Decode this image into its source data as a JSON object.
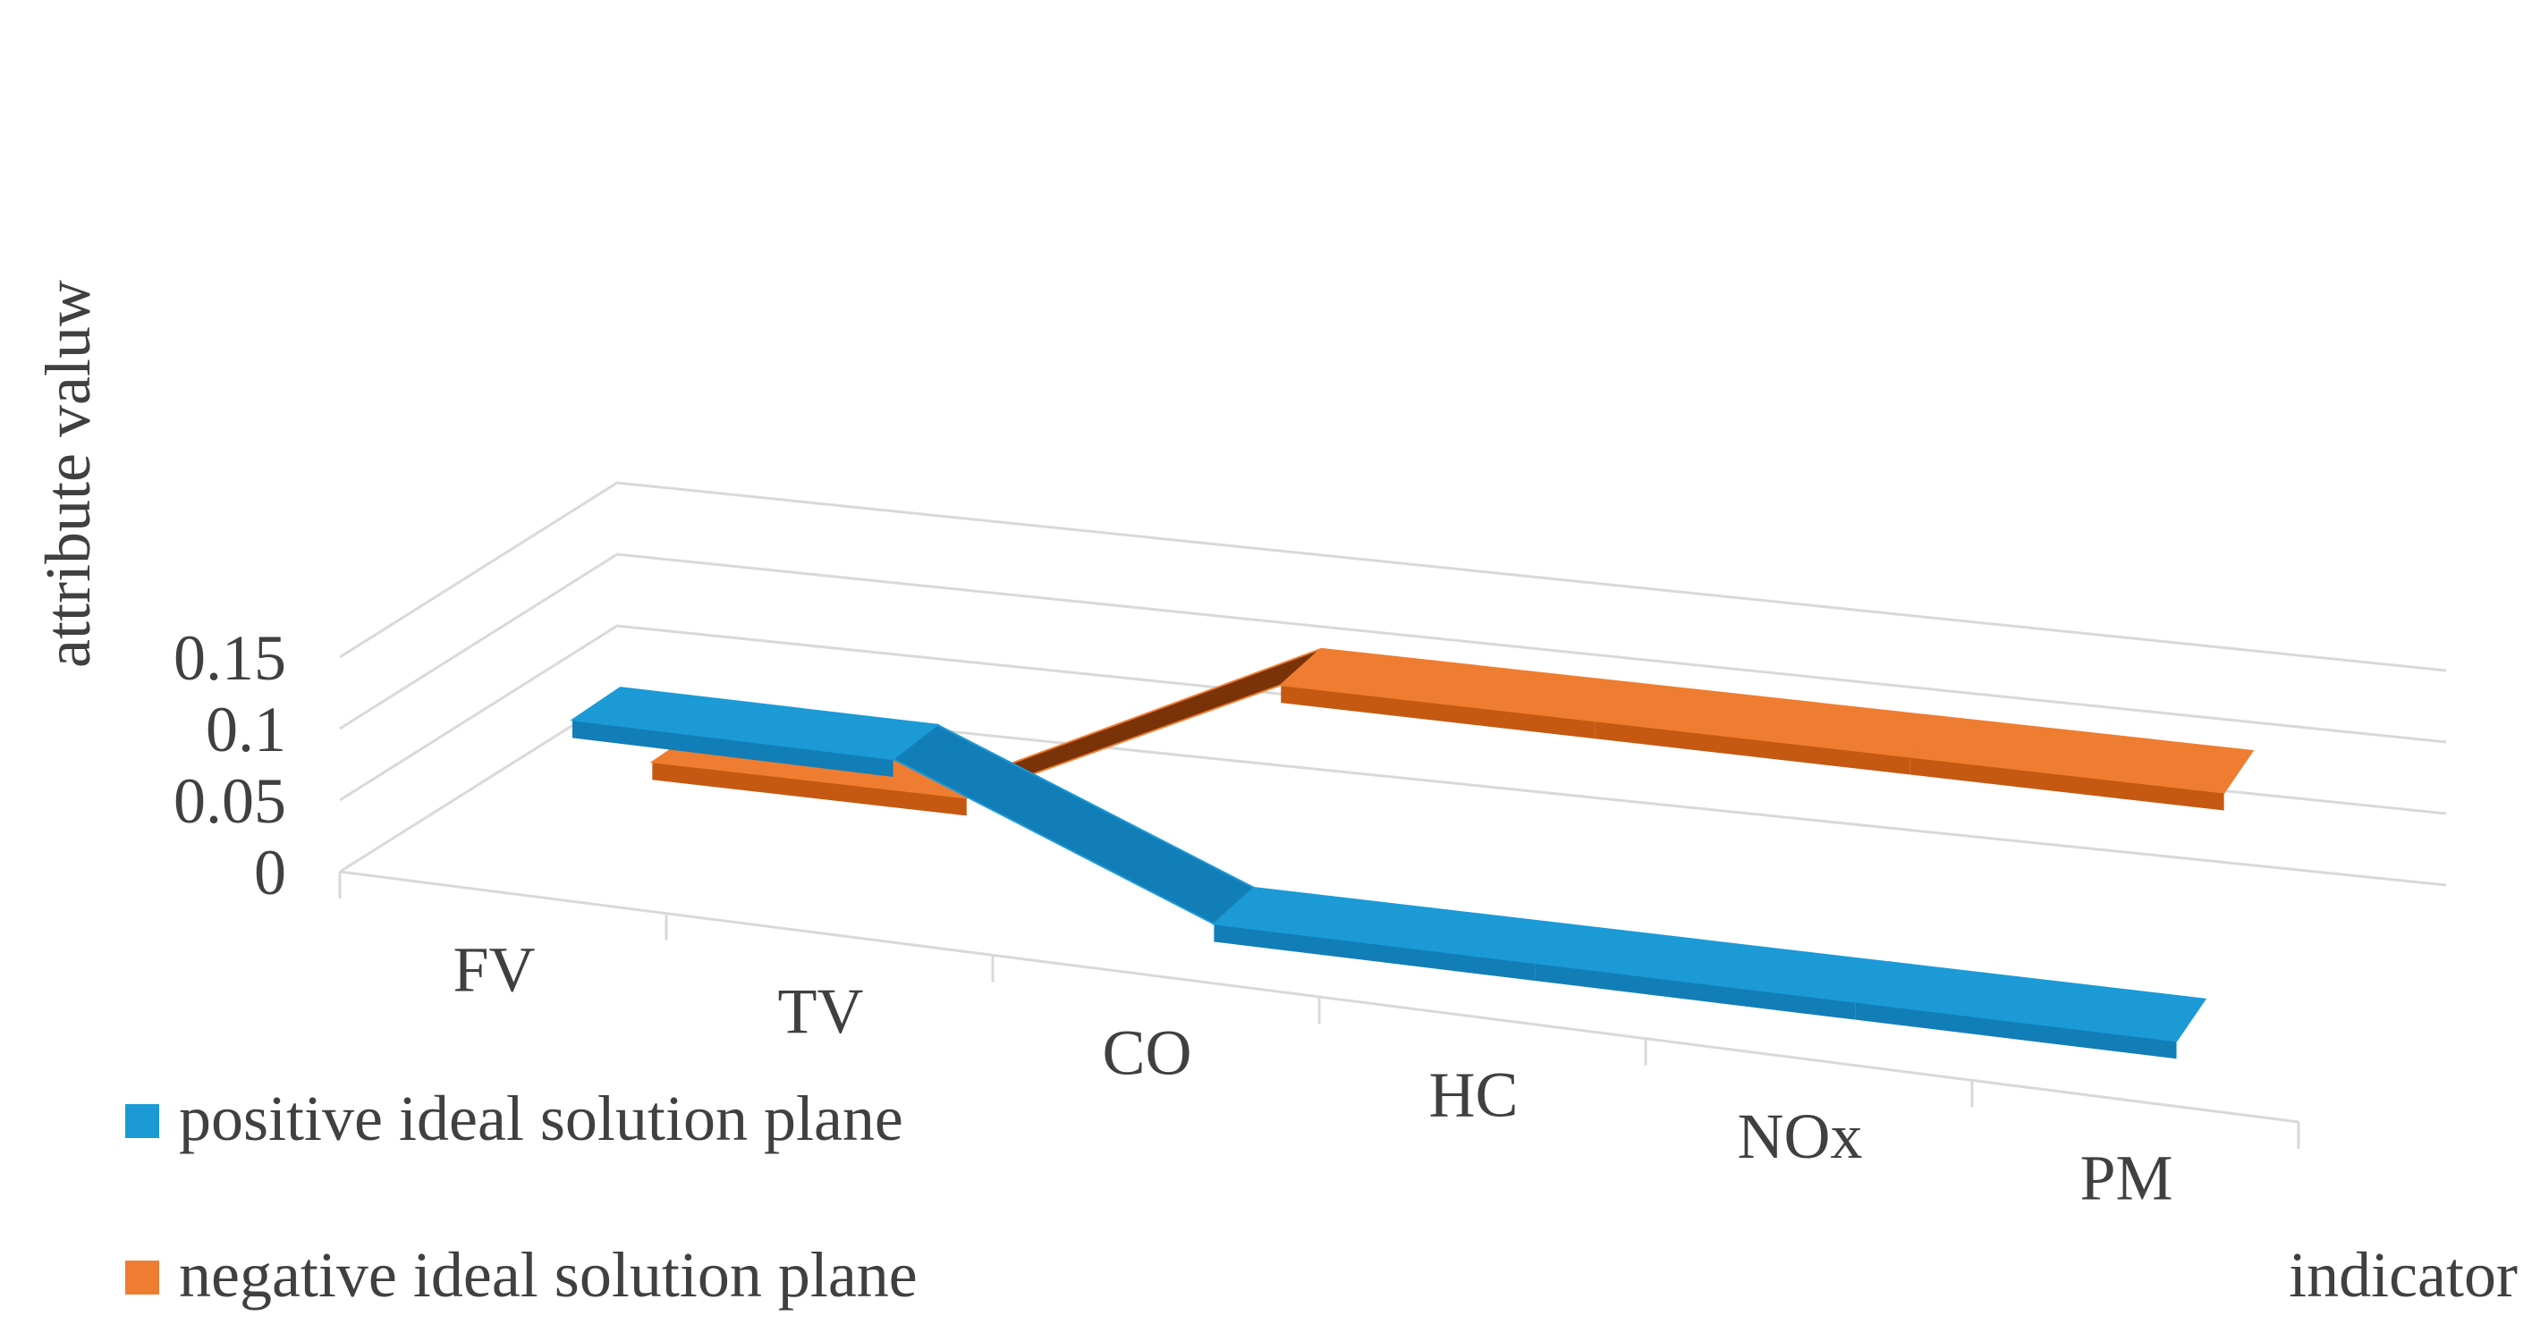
{
  "chart_data": {
    "type": "line",
    "title": "",
    "xlabel": "indicator",
    "ylabel": "attribute valuw",
    "categories": [
      "FV",
      "TV",
      "CO",
      "HC",
      "NOx",
      "PM"
    ],
    "ylim": [
      0,
      0.15
    ],
    "yticks": [
      "0",
      "0.05",
      "0.1",
      "0.15"
    ],
    "grid": true,
    "legend_position": "bottom-left",
    "series": [
      {
        "name": "positive ideal solution plane",
        "color": "#1B9AD6",
        "values": [
          0.088,
          0.088,
          0.0,
          0.0,
          0.0,
          0.0
        ]
      },
      {
        "name": "negative ideal solution plane",
        "color": "#EE7D31",
        "values": [
          0.021,
          0.021,
          0.125,
          0.125,
          0.125,
          0.125
        ]
      }
    ]
  }
}
